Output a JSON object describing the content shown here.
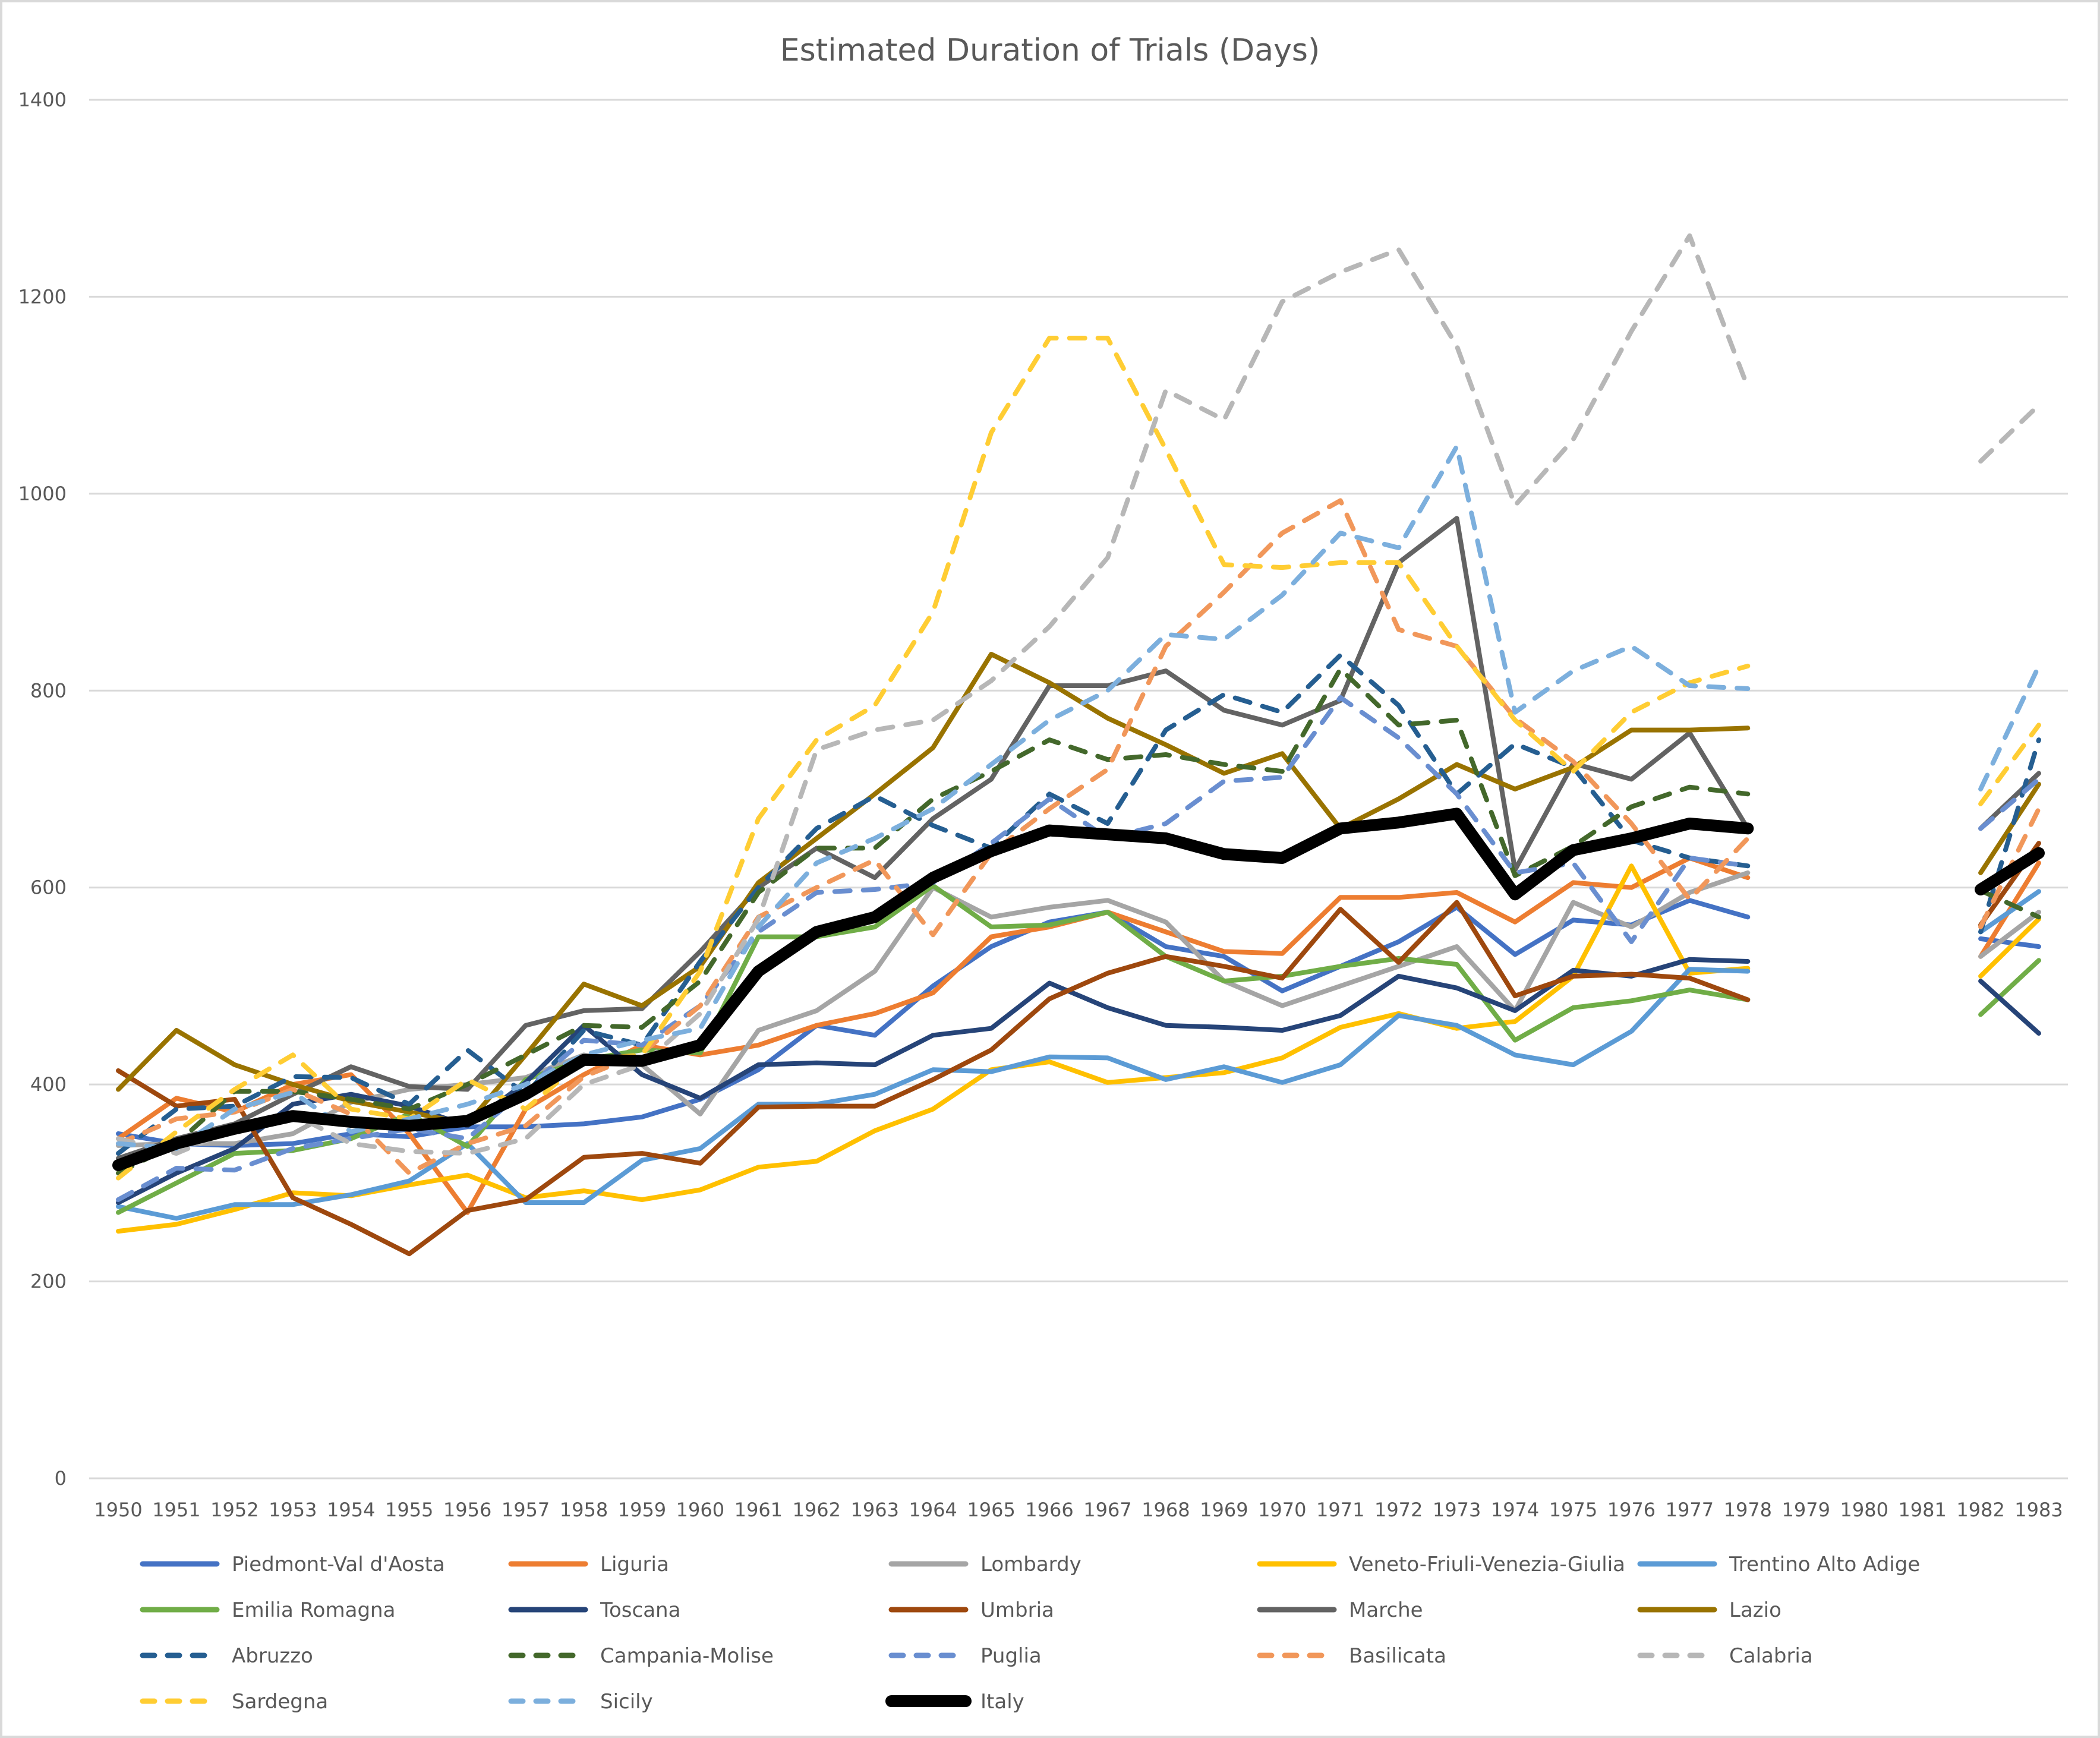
{
  "chart_data": {
    "type": "line",
    "title": "Estimated Duration of Trials (Days)",
    "xlabel": "",
    "ylabel": "",
    "ylim": [
      0,
      1400
    ],
    "yticks": [
      0,
      200,
      400,
      600,
      800,
      1000,
      1200,
      1400
    ],
    "grid": true,
    "legend_position": "bottom",
    "categories": [
      "1950",
      "1951",
      "1952",
      "1953",
      "1954",
      "1955",
      "1956",
      "1957",
      "1958",
      "1959",
      "1960",
      "1961",
      "1962",
      "1963",
      "1964",
      "1965",
      "1966",
      "1967",
      "1968",
      "1969",
      "1970",
      "1971",
      "1972",
      "1973",
      "1974",
      "1975",
      "1976",
      "1977",
      "1978",
      "1979",
      "1980",
      "1981",
      "1982",
      "1983"
    ],
    "series": [
      {
        "name": "Piedmont-Val d'Aosta",
        "color": "#4472c4",
        "dash": false,
        "values": [
          350,
          340,
          338,
          340,
          350,
          347,
          357,
          357,
          360,
          367,
          385,
          415,
          460,
          450,
          500,
          540,
          565,
          575,
          540,
          530,
          495,
          520,
          545,
          580,
          532,
          567,
          562,
          587,
          570,
          null,
          null,
          null,
          548,
          540
        ]
      },
      {
        "name": "Liguria",
        "color": "#ed7d31",
        "dash": false,
        "values": [
          345,
          386,
          372,
          400,
          410,
          350,
          270,
          375,
          410,
          440,
          430,
          440,
          460,
          472,
          493,
          550,
          560,
          575,
          555,
          535,
          533,
          590,
          590,
          595,
          565,
          605,
          600,
          630,
          610,
          null,
          null,
          null,
          530,
          625
        ]
      },
      {
        "name": "Lombardy",
        "color": "#a5a5a5",
        "dash": false,
        "values": [
          338,
          340,
          340,
          350,
          382,
          395,
          400,
          407,
          430,
          420,
          370,
          455,
          475,
          515,
          600,
          570,
          580,
          587,
          565,
          505,
          480,
          500,
          520,
          540,
          475,
          585,
          560,
          595,
          615,
          null,
          null,
          null,
          530,
          575
        ]
      },
      {
        "name": "Veneto-Friuli-Venezia-Giulia",
        "color": "#ffc000",
        "dash": false,
        "values": [
          251,
          258,
          273,
          290,
          287,
          298,
          308,
          285,
          292,
          283,
          293,
          316,
          322,
          353,
          375,
          415,
          423,
          402,
          407,
          412,
          427,
          458,
          472,
          457,
          464,
          510,
          622,
          513,
          518,
          null,
          null,
          null,
          510,
          568
        ]
      },
      {
        "name": "Trentino Alto Adige",
        "color": "#5b9bd5",
        "dash": false,
        "values": [
          276,
          264,
          278,
          278,
          288,
          302,
          340,
          280,
          280,
          323,
          335,
          380,
          380,
          390,
          415,
          413,
          428,
          427,
          405,
          418,
          402,
          420,
          470,
          460,
          430,
          420,
          454,
          517,
          515,
          null,
          null,
          null,
          555,
          596
        ]
      },
      {
        "name": "Emilia Romagna",
        "color": "#70ad47",
        "dash": false,
        "values": [
          270,
          300,
          330,
          333,
          345,
          370,
          337,
          405,
          425,
          435,
          432,
          550,
          550,
          560,
          602,
          560,
          562,
          575,
          530,
          505,
          510,
          520,
          528,
          522,
          445,
          478,
          485,
          496,
          486,
          null,
          null,
          null,
          471,
          526
        ]
      },
      {
        "name": "Toscana",
        "color": "#264478",
        "dash": false,
        "values": [
          280,
          310,
          335,
          380,
          390,
          378,
          358,
          402,
          460,
          410,
          386,
          420,
          422,
          420,
          450,
          457,
          503,
          478,
          460,
          458,
          455,
          470,
          510,
          498,
          475,
          516,
          510,
          527,
          525,
          null,
          null,
          null,
          505,
          452
        ]
      },
      {
        "name": "Umbria",
        "color": "#9e480e",
        "dash": false,
        "values": [
          414,
          378,
          385,
          285,
          258,
          228,
          272,
          283,
          326,
          330,
          320,
          377,
          378,
          378,
          405,
          435,
          487,
          513,
          530,
          520,
          508,
          578,
          524,
          585,
          490,
          510,
          512,
          508,
          486,
          null,
          null,
          null,
          562,
          645
        ]
      },
      {
        "name": "Marche",
        "color": "#636363",
        "dash": false,
        "values": [
          325,
          345,
          360,
          390,
          418,
          398,
          395,
          460,
          475,
          477,
          535,
          600,
          640,
          610,
          670,
          710,
          805,
          805,
          820,
          780,
          765,
          790,
          930,
          975,
          618,
          726,
          710,
          757,
          660,
          null,
          null,
          null,
          660,
          716
        ]
      },
      {
        "name": "Lazio",
        "color": "#997300",
        "dash": false,
        "values": [
          395,
          455,
          420,
          400,
          383,
          372,
          360,
          430,
          502,
          480,
          520,
          605,
          650,
          695,
          742,
          837,
          808,
          772,
          745,
          716,
          736,
          660,
          690,
          725,
          700,
          722,
          760,
          760,
          762,
          null,
          null,
          null,
          615,
          705
        ]
      },
      {
        "name": "Abruzzo",
        "color": "#255e91",
        "dash": true,
        "values": [
          330,
          375,
          378,
          408,
          407,
          380,
          435,
          390,
          455,
          440,
          525,
          600,
          660,
          693,
          663,
          640,
          695,
          665,
          760,
          796,
          778,
          836,
          785,
          695,
          746,
          722,
          648,
          630,
          622,
          null,
          null,
          null,
          555,
          750
        ]
      },
      {
        "name": "Campania-Molise",
        "color": "#43682b",
        "dash": true,
        "values": [
          310,
          340,
          393,
          393,
          385,
          375,
          400,
          430,
          460,
          458,
          505,
          595,
          640,
          640,
          690,
          718,
          750,
          730,
          735,
          725,
          718,
          822,
          765,
          770,
          612,
          642,
          682,
          702,
          695,
          null,
          null,
          null,
          597,
          570
        ]
      },
      {
        "name": "Puglia",
        "color": "#698ed0",
        "dash": true,
        "values": [
          283,
          315,
          313,
          335,
          345,
          355,
          345,
          395,
          445,
          440,
          480,
          555,
          595,
          598,
          605,
          645,
          690,
          650,
          665,
          708,
          712,
          793,
          752,
          695,
          615,
          625,
          545,
          630,
          622,
          null,
          null,
          null,
          660,
          710
        ]
      },
      {
        "name": "Basilicata",
        "color": "#f1975a",
        "dash": true,
        "values": [
          340,
          365,
          372,
          395,
          370,
          310,
          340,
          358,
          408,
          432,
          480,
          570,
          600,
          628,
          552,
          635,
          680,
          720,
          845,
          900,
          960,
          993,
          862,
          845,
          772,
          728,
          665,
          588,
          650,
          null,
          null,
          null,
          560,
          680
        ]
      },
      {
        "name": "Calabria",
        "color": "#b7b7b7",
        "dash": true,
        "values": [
          345,
          330,
          355,
          370,
          340,
          332,
          330,
          345,
          400,
          420,
          472,
          568,
          740,
          760,
          770,
          810,
          865,
          935,
          1105,
          1075,
          1195,
          1225,
          1248,
          1150,
          988,
          1055,
          1165,
          1262,
          1108,
          null,
          null,
          null,
          1033,
          1090
        ]
      },
      {
        "name": "Sardegna",
        "color": "#ffcd33",
        "dash": true,
        "values": [
          305,
          352,
          395,
          430,
          375,
          365,
          405,
          375,
          425,
          430,
          515,
          670,
          750,
          785,
          880,
          1062,
          1158,
          1158,
          1045,
          928,
          925,
          930,
          930,
          845,
          770,
          718,
          778,
          808,
          825,
          null,
          null,
          null,
          685,
          765
        ]
      },
      {
        "name": "Sicily",
        "color": "#7cafdd",
        "dash": true,
        "values": [
          340,
          335,
          375,
          392,
          352,
          365,
          380,
          400,
          430,
          445,
          457,
          560,
          625,
          650,
          680,
          725,
          770,
          800,
          857,
          852,
          897,
          960,
          945,
          1048,
          778,
          820,
          845,
          805,
          802,
          null,
          null,
          null,
          700,
          825
        ]
      },
      {
        "name": "Italy",
        "color": "#000000",
        "dash": false,
        "bold": true,
        "values": [
          318,
          340,
          355,
          368,
          362,
          358,
          363,
          390,
          425,
          424,
          440,
          515,
          555,
          570,
          610,
          637,
          658,
          654,
          650,
          634,
          630,
          660,
          666,
          675,
          593,
          638,
          650,
          665,
          660,
          null,
          null,
          null,
          598,
          635
        ]
      }
    ]
  }
}
